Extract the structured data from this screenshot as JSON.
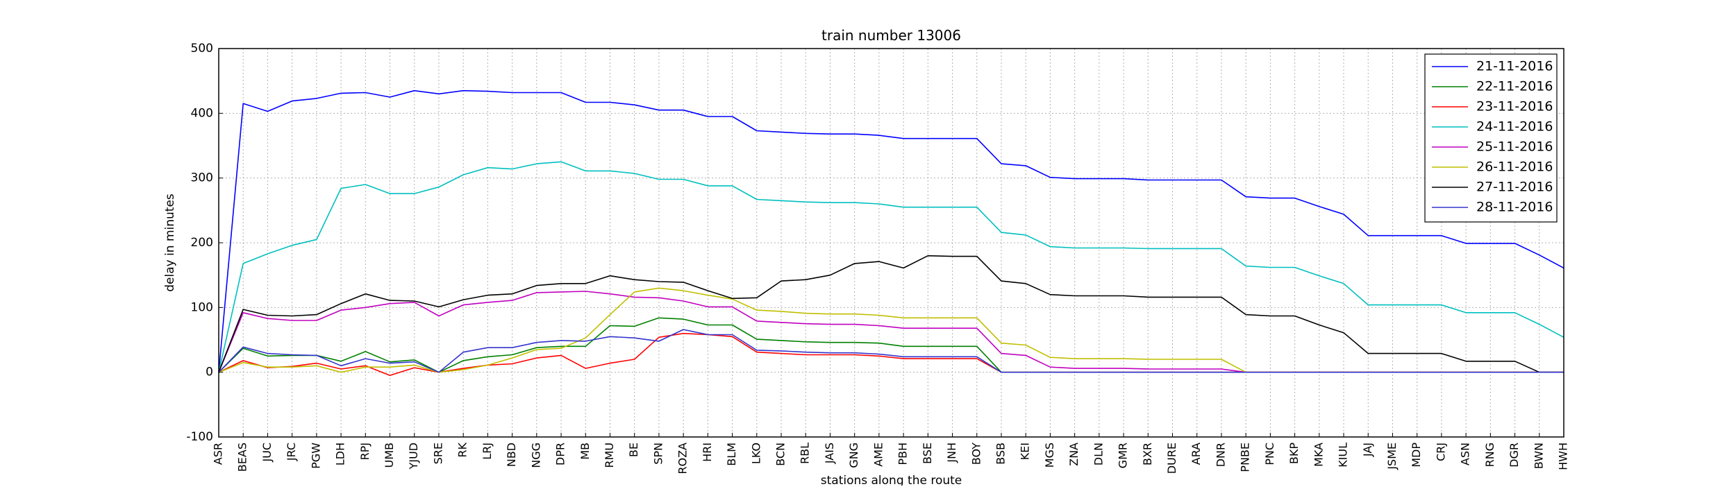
{
  "chart_data": {
    "type": "line",
    "title": "train number 13006",
    "xlabel": "stations along the route",
    "ylabel": "delay in minutes",
    "ylim": [
      -100,
      500
    ],
    "yticks": [
      -100,
      0,
      100,
      200,
      300,
      400,
      500
    ],
    "grid": true,
    "legend_position": "top-right",
    "categories": [
      "ASR",
      "BEAS",
      "JUC",
      "JRC",
      "PGW",
      "LDH",
      "RPJ",
      "UMB",
      "YJUD",
      "SRE",
      "RK",
      "LRJ",
      "NBD",
      "NGG",
      "DPR",
      "MB",
      "RMU",
      "BE",
      "SPN",
      "ROZA",
      "HRI",
      "BLM",
      "LKO",
      "BCN",
      "RBL",
      "JAIS",
      "GNG",
      "AME",
      "PBH",
      "BSE",
      "JNH",
      "BOY",
      "BSB",
      "KEI",
      "MGS",
      "ZNA",
      "DLN",
      "GMR",
      "BXR",
      "DURE",
      "ARA",
      "DNR",
      "PNBE",
      "PNC",
      "BKP",
      "MKA",
      "KIUL",
      "JAJ",
      "JSME",
      "MDP",
      "CRJ",
      "ASN",
      "RNG",
      "DGR",
      "BWN",
      "HWH"
    ],
    "series": [
      {
        "name": "21-11-2016",
        "color": "#0000ff",
        "values": [
          0,
          415,
          403,
          419,
          423,
          431,
          432,
          425,
          435,
          430,
          435,
          434,
          432,
          432,
          432,
          417,
          417,
          413,
          405,
          405,
          395,
          395,
          373,
          371,
          369,
          368,
          368,
          366,
          361,
          361,
          361,
          361,
          322,
          319,
          301,
          299,
          299,
          299,
          297,
          297,
          297,
          297,
          271,
          269,
          269,
          256,
          244,
          211,
          211,
          211,
          211,
          199,
          199,
          199,
          181,
          161
        ]
      },
      {
        "name": "22-11-2016",
        "color": "#008000",
        "values": [
          0,
          37,
          25,
          26,
          26,
          17,
          32,
          16,
          19,
          0,
          18,
          24,
          27,
          38,
          40,
          40,
          72,
          71,
          84,
          82,
          73,
          73,
          51,
          49,
          47,
          46,
          46,
          45,
          40,
          40,
          40,
          40,
          0,
          0,
          0,
          0,
          0,
          0,
          0,
          0,
          0,
          0,
          0,
          0,
          0,
          0,
          0,
          0,
          0,
          0,
          0,
          0,
          0,
          0,
          0,
          0
        ]
      },
      {
        "name": "23-11-2016",
        "color": "#ff0000",
        "values": [
          0,
          18,
          7,
          9,
          14,
          5,
          10,
          -5,
          7,
          0,
          6,
          11,
          13,
          22,
          26,
          6,
          14,
          20,
          54,
          60,
          58,
          55,
          31,
          29,
          27,
          27,
          27,
          25,
          21,
          21,
          21,
          21,
          0,
          0,
          0,
          0,
          0,
          0,
          0,
          0,
          0,
          0,
          0,
          0,
          0,
          0,
          0,
          0,
          0,
          0,
          0,
          0,
          0,
          0,
          0,
          0
        ]
      },
      {
        "name": "24-11-2016",
        "color": "#00bfbf",
        "values": [
          0,
          168,
          183,
          196,
          205,
          284,
          290,
          276,
          276,
          286,
          305,
          316,
          314,
          322,
          325,
          311,
          311,
          307,
          298,
          298,
          288,
          288,
          267,
          265,
          263,
          262,
          262,
          260,
          255,
          255,
          255,
          255,
          216,
          212,
          194,
          192,
          192,
          192,
          191,
          191,
          191,
          191,
          164,
          162,
          162,
          149,
          137,
          104,
          104,
          104,
          104,
          92,
          92,
          92,
          74,
          54
        ]
      },
      {
        "name": "25-11-2016",
        "color": "#bf00bf",
        "values": [
          0,
          92,
          83,
          80,
          80,
          96,
          100,
          106,
          108,
          87,
          104,
          108,
          111,
          123,
          124,
          125,
          121,
          116,
          115,
          110,
          101,
          101,
          79,
          77,
          75,
          74,
          74,
          72,
          68,
          68,
          68,
          68,
          29,
          26,
          8,
          6,
          6,
          6,
          5,
          5,
          5,
          5,
          0,
          0,
          0,
          0,
          0,
          0,
          0,
          0,
          0,
          0,
          0,
          0,
          0,
          0
        ]
      },
      {
        "name": "26-11-2016",
        "color": "#bfbf00",
        "values": [
          0,
          15,
          8,
          8,
          10,
          0,
          8,
          8,
          11,
          0,
          4,
          11,
          22,
          35,
          37,
          53,
          89,
          124,
          130,
          126,
          119,
          113,
          96,
          94,
          91,
          90,
          90,
          88,
          84,
          84,
          84,
          84,
          45,
          42,
          23,
          21,
          21,
          21,
          20,
          20,
          20,
          20,
          0,
          0,
          0,
          0,
          0,
          0,
          0,
          0,
          0,
          0,
          0,
          0,
          0,
          0
        ]
      },
      {
        "name": "27-11-2016",
        "color": "#000000",
        "values": [
          0,
          97,
          88,
          87,
          89,
          106,
          121,
          111,
          110,
          101,
          112,
          119,
          121,
          134,
          137,
          137,
          149,
          143,
          140,
          139,
          126,
          114,
          115,
          141,
          143,
          150,
          168,
          171,
          161,
          180,
          179,
          179,
          141,
          137,
          120,
          118,
          118,
          118,
          116,
          116,
          116,
          116,
          89,
          87,
          87,
          73,
          61,
          29,
          29,
          29,
          29,
          17,
          17,
          17,
          0,
          0
        ]
      },
      {
        "name": "28-11-2016",
        "color": "#3333cc",
        "values": [
          0,
          39,
          29,
          27,
          26,
          10,
          21,
          14,
          16,
          0,
          31,
          38,
          38,
          46,
          49,
          48,
          55,
          53,
          48,
          66,
          58,
          58,
          34,
          33,
          31,
          30,
          30,
          28,
          24,
          24,
          24,
          24,
          0,
          0,
          0,
          0,
          0,
          0,
          0,
          0,
          0,
          0,
          0,
          0,
          0,
          0,
          0,
          0,
          0,
          0,
          0,
          0,
          0,
          0,
          0,
          0
        ]
      }
    ]
  }
}
